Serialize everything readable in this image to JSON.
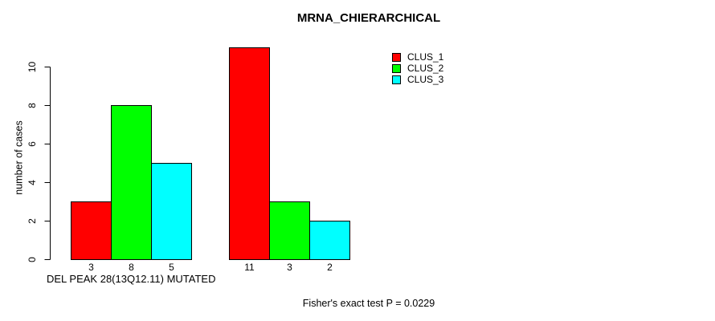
{
  "title": "MRNA_CHIERARCHICAL",
  "y_axis": {
    "label": "number of cases",
    "ticks": [
      0,
      2,
      4,
      6,
      8,
      10
    ]
  },
  "x_axis": {
    "label": "DEL PEAK 28(13Q12.11) MUTATED"
  },
  "legend": {
    "items": [
      {
        "label": "CLUS_1",
        "color": "#ff0000"
      },
      {
        "label": "CLUS_2",
        "color": "#00ff00"
      },
      {
        "label": "CLUS_3",
        "color": "#00ffff"
      }
    ]
  },
  "annotation": "Fisher's exact test P = 0.0229",
  "chart_data": {
    "type": "bar",
    "title": "MRNA_CHIERARCHICAL",
    "xlabel": "DEL PEAK 28(13Q12.11) MUTATED",
    "ylabel": "number of cases",
    "ylim": [
      0,
      11
    ],
    "yticks": [
      0,
      2,
      4,
      6,
      8,
      10
    ],
    "grid": false,
    "legend_position": "top-right",
    "categories": [
      "",
      ""
    ],
    "series": [
      {
        "name": "CLUS_1",
        "color": "#ff0000",
        "values": [
          3,
          11
        ]
      },
      {
        "name": "CLUS_2",
        "color": "#00ff00",
        "values": [
          8,
          3
        ]
      },
      {
        "name": "CLUS_3",
        "color": "#00ffff",
        "values": [
          5,
          2
        ]
      }
    ],
    "bar_value_labels": [
      [
        "3",
        "8",
        "5"
      ],
      [
        "11",
        "3",
        "2"
      ]
    ],
    "annotation": "Fisher's exact test P = 0.0229"
  }
}
